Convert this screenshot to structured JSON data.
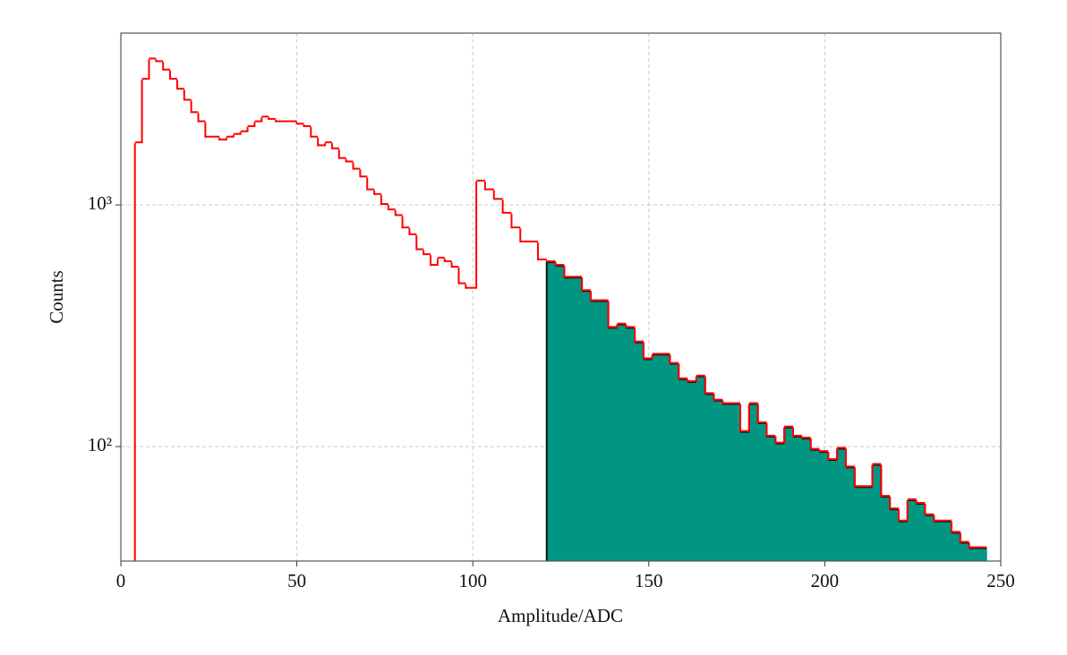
{
  "chart_data": {
    "type": "histogram",
    "x_label": "Amplitude/ADC",
    "y_label": "Counts",
    "log_y": true,
    "grid": true,
    "xlim": [
      0,
      250
    ],
    "xticks": [
      0,
      50,
      100,
      150,
      200,
      250
    ],
    "ylim": [
      33.6,
      5140
    ],
    "yticks": [
      {
        "value": 100,
        "label": "10²"
      },
      {
        "value": 1000,
        "label": "10³"
      }
    ],
    "series": [
      {
        "color": "#ff0000",
        "style": "step",
        "bins": [
          4,
          6,
          8,
          10,
          12,
          14,
          16,
          18,
          20,
          22,
          24,
          26,
          28,
          30,
          32,
          34,
          36,
          38,
          40,
          42,
          44,
          46,
          48,
          50,
          52,
          54,
          56,
          58,
          60,
          62,
          64,
          66,
          68,
          70,
          72,
          74,
          76,
          78,
          80,
          82,
          84,
          86,
          88,
          90,
          92,
          94,
          96,
          98,
          101,
          103.5,
          106,
          108.5,
          111,
          113.5,
          116,
          118.5,
          121,
          123.5,
          126,
          128.5,
          131,
          133.5,
          136,
          138.5,
          141,
          143.5,
          146,
          148.5,
          151,
          153.5,
          156,
          158.5,
          161,
          163.5,
          166,
          168.5,
          171,
          173.5,
          176,
          178.5,
          181,
          183.5,
          186,
          188.5,
          191,
          193.5,
          196,
          198.5,
          201,
          203.5,
          206,
          208.5,
          211,
          213.5,
          216,
          218.5,
          221,
          223.5,
          226,
          228.5,
          231,
          233.5,
          236,
          238.5,
          241,
          243.5,
          246
        ],
        "counts": [
          1800,
          3300,
          4000,
          3900,
          3600,
          3300,
          3000,
          2700,
          2400,
          2200,
          1900,
          1900,
          1850,
          1900,
          1950,
          2000,
          2100,
          2200,
          2300,
          2250,
          2200,
          2200,
          2200,
          2150,
          2100,
          1900,
          1750,
          1800,
          1700,
          1550,
          1500,
          1400,
          1300,
          1150,
          1100,
          1000,
          950,
          900,
          800,
          750,
          650,
          620,
          560,
          600,
          580,
          550,
          470,
          450,
          1250,
          1150,
          1050,
          920,
          800,
          700,
          700,
          590,
          580,
          560,
          500,
          500,
          440,
          400,
          400,
          310,
          320,
          310,
          270,
          230,
          240,
          240,
          220,
          190,
          185,
          195,
          165,
          155,
          150,
          150,
          115,
          150,
          125,
          110,
          103,
          120,
          110,
          108,
          97,
          95,
          88,
          98,
          82,
          68,
          68,
          84,
          62,
          55,
          49,
          60,
          58,
          52,
          49,
          49,
          44,
          40,
          38,
          38
        ]
      },
      {
        "color": "#009682",
        "style": "filled",
        "bins": [
          121,
          123.5,
          126,
          128.5,
          131,
          133.5,
          136,
          138.5,
          141,
          143.5,
          146,
          148.5,
          151,
          153.5,
          156,
          158.5,
          161,
          163.5,
          166,
          168.5,
          171,
          173.5,
          176,
          178.5,
          181,
          183.5,
          186,
          188.5,
          191,
          193.5,
          196,
          198.5,
          201,
          203.5,
          206,
          208.5,
          211,
          213.5,
          216,
          218.5,
          221,
          223.5,
          226,
          228.5,
          231,
          233.5,
          236,
          238.5,
          241,
          243.5,
          246
        ],
        "counts": [
          580,
          560,
          500,
          500,
          440,
          400,
          400,
          310,
          320,
          310,
          270,
          230,
          240,
          240,
          220,
          190,
          185,
          195,
          165,
          155,
          150,
          150,
          115,
          150,
          125,
          110,
          103,
          120,
          110,
          108,
          97,
          95,
          88,
          98,
          82,
          68,
          68,
          84,
          62,
          55,
          49,
          60,
          58,
          52,
          49,
          49,
          44,
          40,
          38,
          38
        ]
      }
    ]
  }
}
